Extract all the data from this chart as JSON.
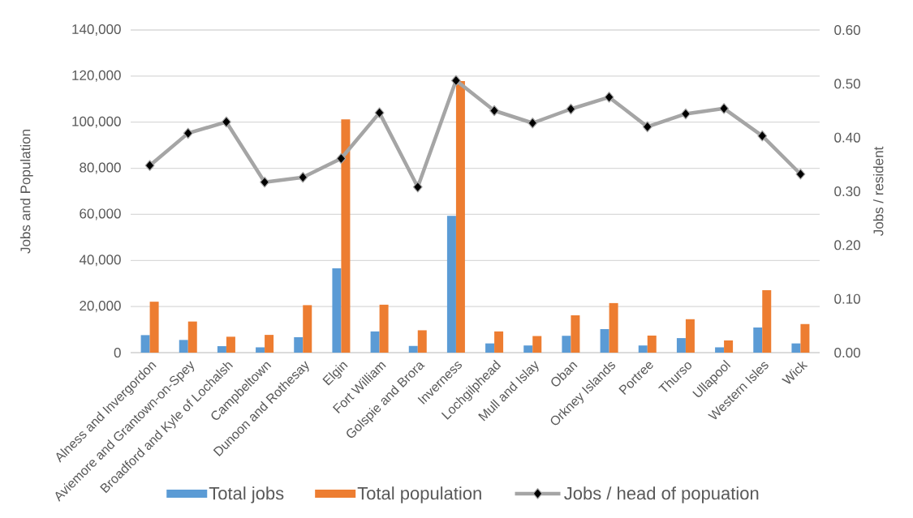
{
  "chart_data": {
    "type": "bar",
    "categories": [
      "Alness and Invergordon",
      "Aviemore and Grantown-on-Spey",
      "Broadford and Kyle of Lochalsh",
      "Campbeltown",
      "Dunoon and Rothesay",
      "Elgin",
      "Fort William",
      "Golspie and Brora",
      "Inverness",
      "Lochgilphead",
      "Mull and Islay",
      "Oban",
      "Orkney Islands",
      "Portree",
      "Thurso",
      "Ullapool",
      "Western Isles",
      "Wick"
    ],
    "series": [
      {
        "name": "Total jobs",
        "color": "#5b9bd5",
        "values": [
          7600,
          5500,
          2800,
          2300,
          6700,
          36600,
          9200,
          2900,
          59400,
          4000,
          3100,
          7300,
          10200,
          3100,
          6300,
          2300,
          10900,
          4000
        ]
      },
      {
        "name": "Total population",
        "color": "#ed7d31",
        "values": [
          22100,
          13500,
          6900,
          7700,
          20600,
          101200,
          20800,
          9700,
          117800,
          9200,
          7200,
          16200,
          21500,
          7400,
          14500,
          5300,
          27100,
          12400
        ]
      },
      {
        "name": "Jobs / head of popuation",
        "type": "line",
        "axis": "y2",
        "marker": "diamond",
        "color": "#a5a5a5",
        "values": [
          0.348,
          0.408,
          0.429,
          0.317,
          0.326,
          0.361,
          0.446,
          0.308,
          0.506,
          0.45,
          0.427,
          0.453,
          0.475,
          0.42,
          0.444,
          0.454,
          0.403,
          0.332
        ]
      }
    ],
    "ylabel": "Jobs and Population",
    "y2label": "Jobs / resident",
    "ylim": [
      0,
      140000
    ],
    "yticks": [
      0,
      {
        "value": 20000,
        "label": "20,000"
      },
      {
        "value": 40000,
        "label": "40,000"
      },
      {
        "value": 60000,
        "label": "60,000"
      },
      {
        "value": 80000,
        "label": "80,000"
      },
      {
        "value": 100000,
        "label": "100,000"
      },
      {
        "value": 120000,
        "label": "120,000"
      },
      {
        "value": 140000,
        "label": "140,000"
      }
    ],
    "y2lim": [
      0,
      0.6
    ],
    "y2ticks": [
      {
        "value": 0,
        "label": "0.00"
      },
      {
        "value": 0.1,
        "label": "0.10"
      },
      {
        "value": 0.2,
        "label": "0.20"
      },
      {
        "value": 0.3,
        "label": "0.30"
      },
      {
        "value": 0.4,
        "label": "0.40"
      },
      {
        "value": 0.5,
        "label": "0.50"
      },
      {
        "value": 0.6,
        "label": "0.60"
      }
    ],
    "grid": "y",
    "legend": "bottom"
  }
}
